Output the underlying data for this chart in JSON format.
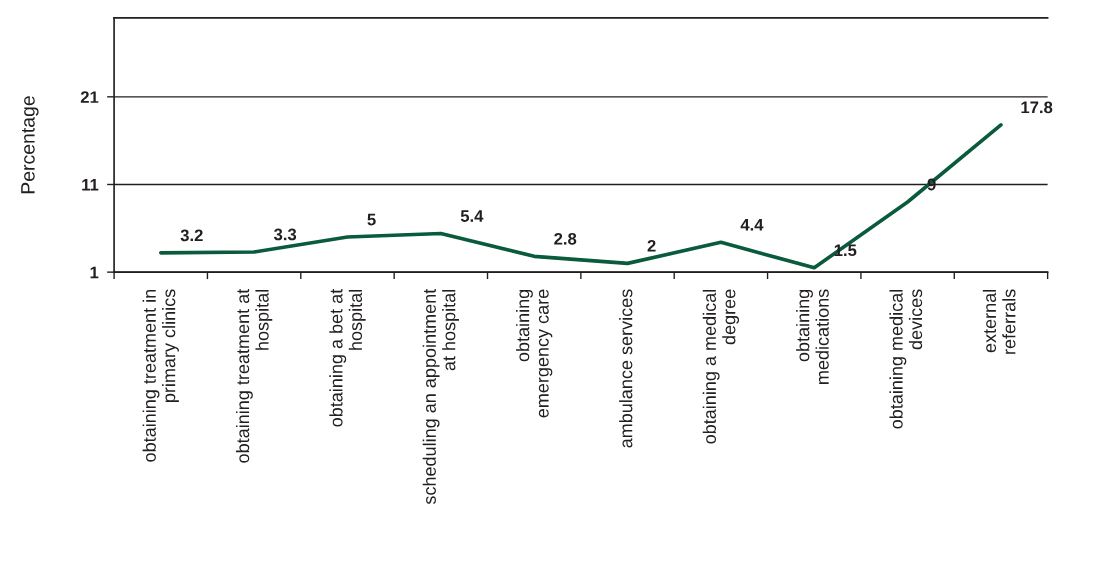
{
  "chart_data": {
    "type": "line",
    "ylabel": "Percentage",
    "categories": [
      "obtaining treatment in\nprimary clinics",
      "obtaining treatment at\nhospital",
      "obtaining a bet at\nhospital",
      "scheduling an appointment\nat hospital",
      "obtaining\nemergency care",
      "ambulance services",
      "obtaining a medical\ndegree",
      "obtaining\nmedications",
      "obtaining medical\ndevices",
      "external\nreferrals"
    ],
    "series": [
      {
        "color": "#0a5a3c",
        "values": [
          3.2,
          3.3,
          5,
          5.4,
          2.8,
          2,
          4.4,
          1.5,
          9,
          17.8
        ]
      }
    ],
    "ylim": [
      1,
      30
    ],
    "yticks": [
      1,
      11,
      21
    ],
    "grid": "y",
    "data_labels": true
  }
}
